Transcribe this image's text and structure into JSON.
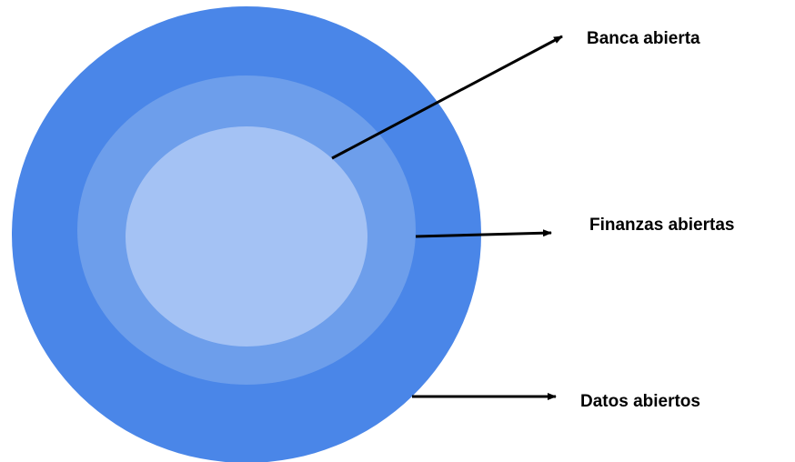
{
  "diagram": {
    "layers": [
      {
        "label": "Datos abiertos",
        "color": "#4A86E8"
      },
      {
        "label": "Finanzas abiertas",
        "color": "#6D9EEB"
      },
      {
        "label": "Banca abierta",
        "color": "#A4C2F4"
      }
    ],
    "arrow_color": "#000000"
  }
}
